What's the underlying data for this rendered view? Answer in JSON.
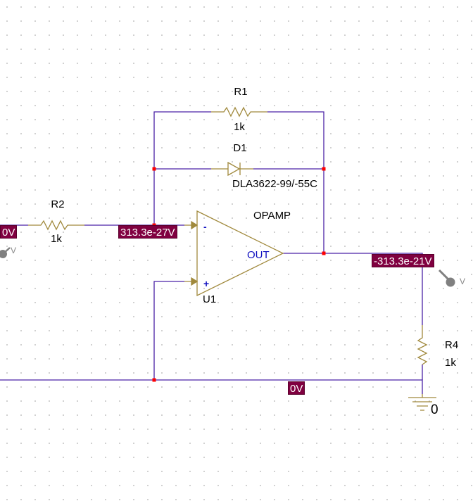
{
  "components": {
    "r1": {
      "ref": "R1",
      "value": "1k"
    },
    "d1": {
      "ref": "D1",
      "value": "DLA3622-99/-55C"
    },
    "r2": {
      "ref": "R2",
      "value": "1k"
    },
    "r4": {
      "ref": "R4",
      "value": "1k"
    },
    "u1": {
      "ref": "U1",
      "value": "OPAMP",
      "pin_minus": "-",
      "pin_plus": "+",
      "pin_out": "OUT"
    }
  },
  "voltage_markers": {
    "left_input": "0V",
    "inverting_node": "313.3e-27V",
    "output_node": "-313.3e-21V",
    "ground_rail": "0V"
  },
  "probes": {
    "left_probe": "V",
    "right_probe": "V"
  },
  "ground": {
    "label": "0"
  },
  "colors": {
    "wire": "#4b22a6",
    "part": "#a0893c",
    "junction": "#ff0000",
    "marker_bg": "#800040",
    "pin_text": "#1010c0",
    "probe": "#808080"
  }
}
